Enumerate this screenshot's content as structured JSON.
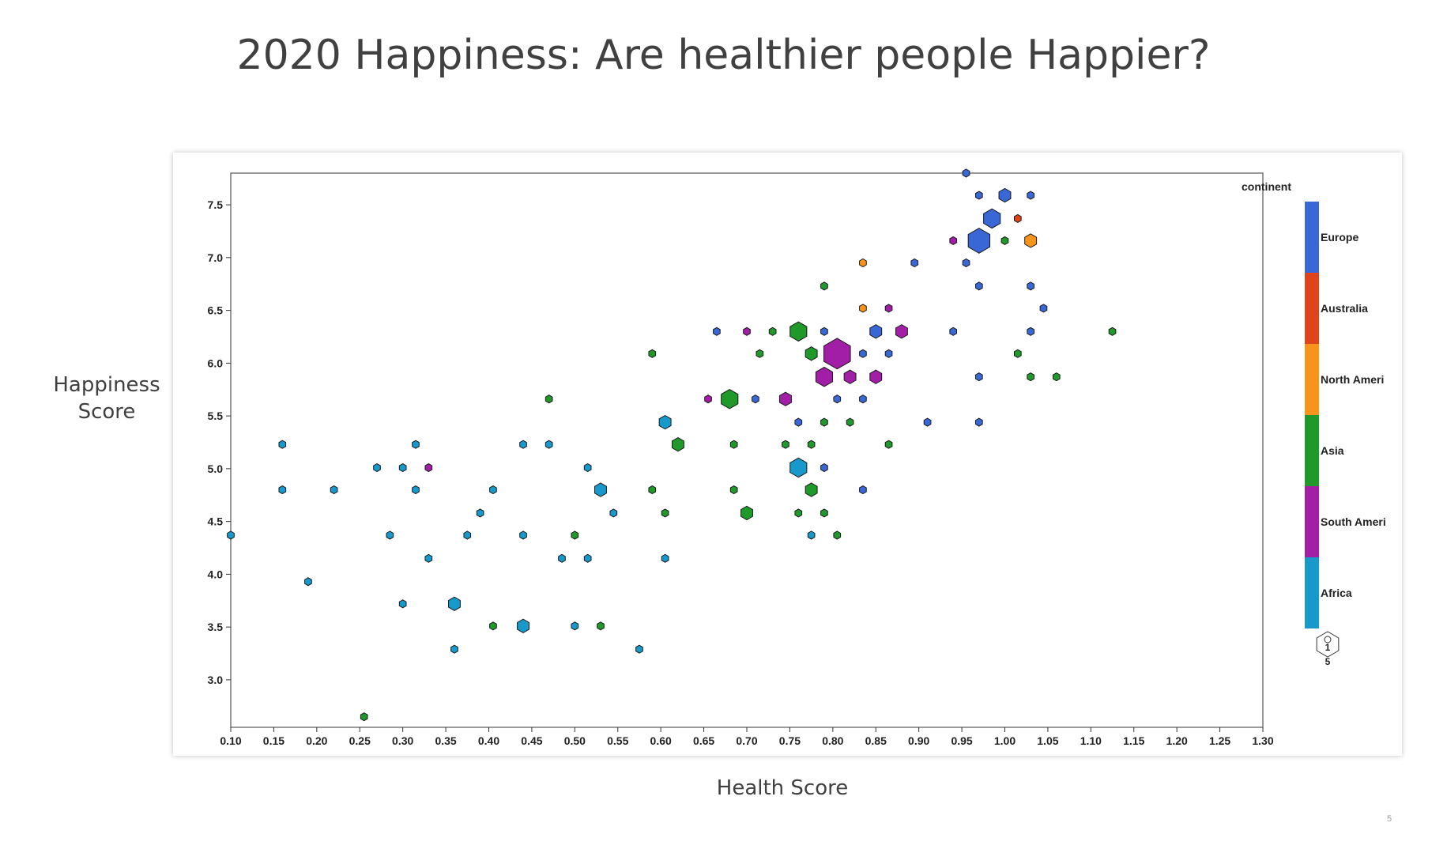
{
  "slide": {
    "title": "2020 Happiness: Are healthier people Happier?",
    "ylabel_line1": "Happiness",
    "ylabel_line2": "Score",
    "xlabel": "Health Score",
    "slide_number": "5"
  },
  "chart_data": {
    "type": "scatter",
    "title": "2020 Happiness: Are healthier people Happier?",
    "xlabel": "Health Score",
    "ylabel": "Happiness Score",
    "xlim": [
      0.1,
      1.3
    ],
    "ylim": [
      2.55,
      7.8
    ],
    "xticks": [
      "0.10",
      "0.15",
      "0.20",
      "0.25",
      "0.30",
      "0.35",
      "0.40",
      "0.45",
      "0.50",
      "0.55",
      "0.60",
      "0.65",
      "0.70",
      "0.75",
      "0.80",
      "0.85",
      "0.90",
      "0.95",
      "1.00",
      "1.05",
      "1.10",
      "1.15",
      "1.20",
      "1.25",
      "1.30"
    ],
    "yticks": [
      "3.0",
      "3.5",
      "4.0",
      "4.5",
      "5.0",
      "5.5",
      "6.0",
      "6.5",
      "7.0",
      "7.5"
    ],
    "legend": {
      "title": "continent",
      "placement": "right",
      "items": [
        {
          "label": "Europe",
          "color": "#3a67d6"
        },
        {
          "label": "Australia",
          "color": "#e0441a"
        },
        {
          "label": "North Ameri",
          "color": "#f7951b"
        },
        {
          "label": "Asia",
          "color": "#1f9a2a"
        },
        {
          "label": "South Ameri",
          "color": "#a21ea6"
        },
        {
          "label": "Africa",
          "color": "#1799cc"
        }
      ],
      "size_key_top": "1",
      "size_key_bottom": "5"
    },
    "series": [
      {
        "name": "Europe",
        "color": "#3a67d6",
        "points": [
          {
            "x": 0.955,
            "y": 7.8,
            "n": 1
          },
          {
            "x": 0.97,
            "y": 7.59,
            "n": 1
          },
          {
            "x": 1.0,
            "y": 7.59,
            "n": 2
          },
          {
            "x": 1.03,
            "y": 7.59,
            "n": 1
          },
          {
            "x": 0.985,
            "y": 7.37,
            "n": 3
          },
          {
            "x": 0.97,
            "y": 7.16,
            "n": 4
          },
          {
            "x": 0.895,
            "y": 6.95,
            "n": 1
          },
          {
            "x": 0.955,
            "y": 6.95,
            "n": 1
          },
          {
            "x": 0.97,
            "y": 6.73,
            "n": 1
          },
          {
            "x": 1.03,
            "y": 6.73,
            "n": 1
          },
          {
            "x": 1.045,
            "y": 6.52,
            "n": 1
          },
          {
            "x": 0.665,
            "y": 6.3,
            "n": 1
          },
          {
            "x": 0.79,
            "y": 6.3,
            "n": 1
          },
          {
            "x": 0.85,
            "y": 6.3,
            "n": 2
          },
          {
            "x": 0.94,
            "y": 6.3,
            "n": 1
          },
          {
            "x": 1.03,
            "y": 6.3,
            "n": 1
          },
          {
            "x": 0.835,
            "y": 6.09,
            "n": 1
          },
          {
            "x": 0.865,
            "y": 6.09,
            "n": 1
          },
          {
            "x": 0.97,
            "y": 5.87,
            "n": 1
          },
          {
            "x": 0.71,
            "y": 5.66,
            "n": 1
          },
          {
            "x": 0.805,
            "y": 5.66,
            "n": 1
          },
          {
            "x": 0.835,
            "y": 5.66,
            "n": 1
          },
          {
            "x": 0.76,
            "y": 5.44,
            "n": 1
          },
          {
            "x": 0.91,
            "y": 5.44,
            "n": 1
          },
          {
            "x": 0.97,
            "y": 5.44,
            "n": 1
          },
          {
            "x": 0.79,
            "y": 5.01,
            "n": 1
          },
          {
            "x": 0.835,
            "y": 4.8,
            "n": 1
          }
        ]
      },
      {
        "name": "Australia",
        "color": "#e0441a",
        "points": [
          {
            "x": 1.015,
            "y": 7.37,
            "n": 1
          }
        ]
      },
      {
        "name": "North Ameri",
        "color": "#f7951b",
        "points": [
          {
            "x": 1.03,
            "y": 7.16,
            "n": 2
          },
          {
            "x": 0.835,
            "y": 6.95,
            "n": 1
          },
          {
            "x": 0.835,
            "y": 6.52,
            "n": 1
          }
        ]
      },
      {
        "name": "Asia",
        "color": "#1f9a2a",
        "points": [
          {
            "x": 1.0,
            "y": 7.16,
            "n": 1
          },
          {
            "x": 0.79,
            "y": 6.73,
            "n": 1
          },
          {
            "x": 0.73,
            "y": 6.3,
            "n": 1
          },
          {
            "x": 0.76,
            "y": 6.3,
            "n": 3
          },
          {
            "x": 1.125,
            "y": 6.3,
            "n": 1
          },
          {
            "x": 0.59,
            "y": 6.09,
            "n": 1
          },
          {
            "x": 0.715,
            "y": 6.09,
            "n": 1
          },
          {
            "x": 0.775,
            "y": 6.09,
            "n": 2
          },
          {
            "x": 1.015,
            "y": 6.09,
            "n": 1
          },
          {
            "x": 1.03,
            "y": 5.87,
            "n": 1
          },
          {
            "x": 1.06,
            "y": 5.87,
            "n": 1
          },
          {
            "x": 0.47,
            "y": 5.66,
            "n": 1
          },
          {
            "x": 0.68,
            "y": 5.66,
            "n": 3
          },
          {
            "x": 0.79,
            "y": 5.44,
            "n": 1
          },
          {
            "x": 0.82,
            "y": 5.44,
            "n": 1
          },
          {
            "x": 0.62,
            "y": 5.23,
            "n": 2
          },
          {
            "x": 0.685,
            "y": 5.23,
            "n": 1
          },
          {
            "x": 0.745,
            "y": 5.23,
            "n": 1
          },
          {
            "x": 0.775,
            "y": 5.23,
            "n": 1
          },
          {
            "x": 0.865,
            "y": 5.23,
            "n": 1
          },
          {
            "x": 0.59,
            "y": 4.8,
            "n": 1
          },
          {
            "x": 0.685,
            "y": 4.8,
            "n": 1
          },
          {
            "x": 0.775,
            "y": 4.8,
            "n": 2
          },
          {
            "x": 0.605,
            "y": 4.58,
            "n": 1
          },
          {
            "x": 0.7,
            "y": 4.58,
            "n": 2
          },
          {
            "x": 0.76,
            "y": 4.58,
            "n": 1
          },
          {
            "x": 0.79,
            "y": 4.58,
            "n": 1
          },
          {
            "x": 0.5,
            "y": 4.37,
            "n": 1
          },
          {
            "x": 0.805,
            "y": 4.37,
            "n": 1
          },
          {
            "x": 0.405,
            "y": 3.51,
            "n": 1
          },
          {
            "x": 0.53,
            "y": 3.51,
            "n": 1
          },
          {
            "x": 0.255,
            "y": 2.65,
            "n": 1
          }
        ]
      },
      {
        "name": "South Ameri",
        "color": "#a21ea6",
        "points": [
          {
            "x": 0.94,
            "y": 7.16,
            "n": 1
          },
          {
            "x": 0.865,
            "y": 6.52,
            "n": 1
          },
          {
            "x": 0.7,
            "y": 6.3,
            "n": 1
          },
          {
            "x": 0.88,
            "y": 6.3,
            "n": 2
          },
          {
            "x": 0.805,
            "y": 6.09,
            "n": 5
          },
          {
            "x": 0.79,
            "y": 5.87,
            "n": 3
          },
          {
            "x": 0.82,
            "y": 5.87,
            "n": 2
          },
          {
            "x": 0.85,
            "y": 5.87,
            "n": 2
          },
          {
            "x": 0.655,
            "y": 5.66,
            "n": 1
          },
          {
            "x": 0.745,
            "y": 5.66,
            "n": 2
          },
          {
            "x": 0.33,
            "y": 5.01,
            "n": 1
          }
        ]
      },
      {
        "name": "Africa",
        "color": "#1799cc",
        "points": [
          {
            "x": 0.605,
            "y": 5.44,
            "n": 2
          },
          {
            "x": 0.16,
            "y": 5.23,
            "n": 1
          },
          {
            "x": 0.315,
            "y": 5.23,
            "n": 1
          },
          {
            "x": 0.44,
            "y": 5.23,
            "n": 1
          },
          {
            "x": 0.47,
            "y": 5.23,
            "n": 1
          },
          {
            "x": 0.27,
            "y": 5.01,
            "n": 1
          },
          {
            "x": 0.3,
            "y": 5.01,
            "n": 1
          },
          {
            "x": 0.515,
            "y": 5.01,
            "n": 1
          },
          {
            "x": 0.76,
            "y": 5.01,
            "n": 3
          },
          {
            "x": 0.16,
            "y": 4.8,
            "n": 1
          },
          {
            "x": 0.22,
            "y": 4.8,
            "n": 1
          },
          {
            "x": 0.315,
            "y": 4.8,
            "n": 1
          },
          {
            "x": 0.405,
            "y": 4.8,
            "n": 1
          },
          {
            "x": 0.53,
            "y": 4.8,
            "n": 2
          },
          {
            "x": 0.39,
            "y": 4.58,
            "n": 1
          },
          {
            "x": 0.545,
            "y": 4.58,
            "n": 1
          },
          {
            "x": 0.1,
            "y": 4.37,
            "n": 1
          },
          {
            "x": 0.285,
            "y": 4.37,
            "n": 1
          },
          {
            "x": 0.375,
            "y": 4.37,
            "n": 1
          },
          {
            "x": 0.44,
            "y": 4.37,
            "n": 1
          },
          {
            "x": 0.775,
            "y": 4.37,
            "n": 1
          },
          {
            "x": 0.33,
            "y": 4.15,
            "n": 1
          },
          {
            "x": 0.485,
            "y": 4.15,
            "n": 1
          },
          {
            "x": 0.515,
            "y": 4.15,
            "n": 1
          },
          {
            "x": 0.605,
            "y": 4.15,
            "n": 1
          },
          {
            "x": 0.19,
            "y": 3.93,
            "n": 1
          },
          {
            "x": 0.3,
            "y": 3.72,
            "n": 1
          },
          {
            "x": 0.36,
            "y": 3.72,
            "n": 2
          },
          {
            "x": 0.44,
            "y": 3.51,
            "n": 2
          },
          {
            "x": 0.5,
            "y": 3.51,
            "n": 1
          },
          {
            "x": 0.36,
            "y": 3.29,
            "n": 1
          },
          {
            "x": 0.575,
            "y": 3.29,
            "n": 1
          }
        ]
      }
    ]
  }
}
